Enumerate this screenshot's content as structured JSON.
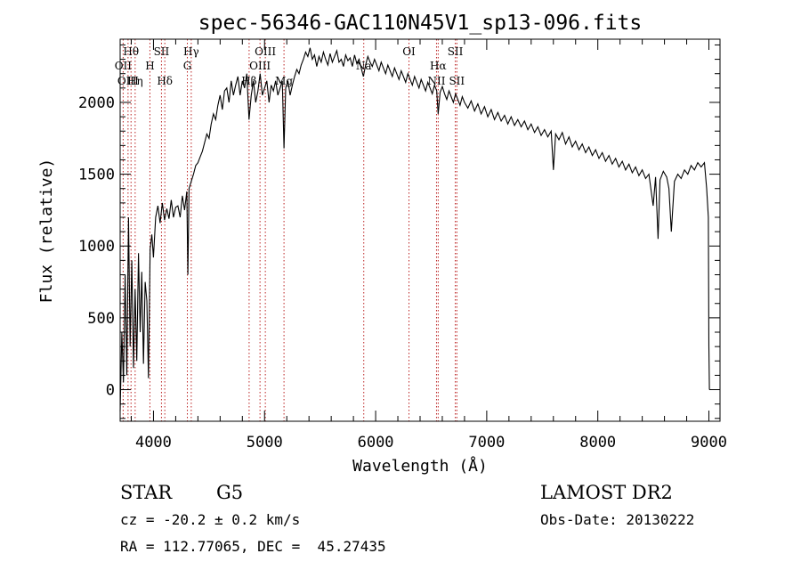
{
  "chart_data": {
    "type": "line",
    "title": "spec-56346-GAC110N45V1_sp13-096.fits",
    "xlabel": "Wavelength (Å)",
    "ylabel": "Flux (relative)",
    "xlim": [
      3700,
      9100
    ],
    "ylim": [
      -220,
      2440
    ],
    "x_ticks": [
      4000,
      5000,
      6000,
      7000,
      8000,
      9000
    ],
    "y_ticks": [
      0,
      500,
      1000,
      1500,
      2000
    ],
    "grid": false,
    "series": [
      {
        "points": [
          [
            3700,
            -150
          ],
          [
            3715,
            400
          ],
          [
            3730,
            50
          ],
          [
            3745,
            800
          ],
          [
            3760,
            100
          ],
          [
            3775,
            1200
          ],
          [
            3790,
            300
          ],
          [
            3805,
            900
          ],
          [
            3820,
            150
          ],
          [
            3835,
            700
          ],
          [
            3850,
            200
          ],
          [
            3865,
            950
          ],
          [
            3880,
            400
          ],
          [
            3895,
            820
          ],
          [
            3910,
            180
          ],
          [
            3925,
            750
          ],
          [
            3940,
            620
          ],
          [
            3955,
            80
          ],
          [
            3970,
            980
          ],
          [
            3985,
            1080
          ],
          [
            4000,
            920
          ],
          [
            4020,
            1200
          ],
          [
            4040,
            1280
          ],
          [
            4060,
            1160
          ],
          [
            4080,
            1300
          ],
          [
            4100,
            1180
          ],
          [
            4120,
            1260
          ],
          [
            4140,
            1190
          ],
          [
            4160,
            1320
          ],
          [
            4180,
            1200
          ],
          [
            4200,
            1270
          ],
          [
            4220,
            1280
          ],
          [
            4240,
            1200
          ],
          [
            4260,
            1350
          ],
          [
            4280,
            1250
          ],
          [
            4300,
            1380
          ],
          [
            4310,
            800
          ],
          [
            4320,
            1400
          ],
          [
            4340,
            1450
          ],
          [
            4360,
            1500
          ],
          [
            4380,
            1560
          ],
          [
            4400,
            1580
          ],
          [
            4420,
            1620
          ],
          [
            4440,
            1660
          ],
          [
            4460,
            1720
          ],
          [
            4480,
            1780
          ],
          [
            4500,
            1750
          ],
          [
            4520,
            1850
          ],
          [
            4540,
            1920
          ],
          [
            4560,
            1880
          ],
          [
            4580,
            1980
          ],
          [
            4600,
            2050
          ],
          [
            4620,
            1950
          ],
          [
            4640,
            2080
          ],
          [
            4660,
            2100
          ],
          [
            4680,
            2000
          ],
          [
            4700,
            2150
          ],
          [
            4720,
            2050
          ],
          [
            4740,
            2120
          ],
          [
            4760,
            2180
          ],
          [
            4780,
            2050
          ],
          [
            4800,
            2150
          ],
          [
            4820,
            2100
          ],
          [
            4840,
            2200
          ],
          [
            4860,
            1880
          ],
          [
            4880,
            2050
          ],
          [
            4900,
            2150
          ],
          [
            4920,
            2000
          ],
          [
            4940,
            2080
          ],
          [
            4960,
            2200
          ],
          [
            4980,
            2050
          ],
          [
            5000,
            2100
          ],
          [
            5020,
            2150
          ],
          [
            5040,
            2000
          ],
          [
            5060,
            2120
          ],
          [
            5080,
            2080
          ],
          [
            5100,
            2150
          ],
          [
            5120,
            2050
          ],
          [
            5140,
            2100
          ],
          [
            5160,
            2150
          ],
          [
            5175,
            1680
          ],
          [
            5190,
            2100
          ],
          [
            5210,
            2150
          ],
          [
            5230,
            2050
          ],
          [
            5250,
            2120
          ],
          [
            5270,
            2180
          ],
          [
            5290,
            2230
          ],
          [
            5310,
            2200
          ],
          [
            5330,
            2260
          ],
          [
            5350,
            2300
          ],
          [
            5370,
            2350
          ],
          [
            5390,
            2320
          ],
          [
            5410,
            2380
          ],
          [
            5430,
            2300
          ],
          [
            5450,
            2330
          ],
          [
            5470,
            2250
          ],
          [
            5490,
            2320
          ],
          [
            5510,
            2280
          ],
          [
            5530,
            2350
          ],
          [
            5550,
            2300
          ],
          [
            5570,
            2260
          ],
          [
            5590,
            2340
          ],
          [
            5610,
            2280
          ],
          [
            5630,
            2320
          ],
          [
            5650,
            2360
          ],
          [
            5670,
            2280
          ],
          [
            5690,
            2300
          ],
          [
            5710,
            2250
          ],
          [
            5730,
            2330
          ],
          [
            5750,
            2290
          ],
          [
            5770,
            2310
          ],
          [
            5790,
            2250
          ],
          [
            5810,
            2330
          ],
          [
            5830,
            2270
          ],
          [
            5850,
            2300
          ],
          [
            5870,
            2240
          ],
          [
            5890,
            2180
          ],
          [
            5910,
            2260
          ],
          [
            5930,
            2320
          ],
          [
            5950,
            2280
          ],
          [
            5970,
            2250
          ],
          [
            5990,
            2300
          ],
          [
            6010,
            2260
          ],
          [
            6030,
            2220
          ],
          [
            6050,
            2280
          ],
          [
            6070,
            2240
          ],
          [
            6090,
            2200
          ],
          [
            6110,
            2260
          ],
          [
            6130,
            2220
          ],
          [
            6150,
            2180
          ],
          [
            6170,
            2240
          ],
          [
            6190,
            2200
          ],
          [
            6210,
            2160
          ],
          [
            6230,
            2220
          ],
          [
            6250,
            2180
          ],
          [
            6270,
            2140
          ],
          [
            6290,
            2200
          ],
          [
            6310,
            2160
          ],
          [
            6330,
            2120
          ],
          [
            6350,
            2180
          ],
          [
            6370,
            2140
          ],
          [
            6390,
            2100
          ],
          [
            6410,
            2160
          ],
          [
            6430,
            2120
          ],
          [
            6450,
            2080
          ],
          [
            6470,
            2140
          ],
          [
            6490,
            2100
          ],
          [
            6510,
            2060
          ],
          [
            6530,
            2120
          ],
          [
            6550,
            2080
          ],
          [
            6563,
            1920
          ],
          [
            6580,
            2070
          ],
          [
            6600,
            2110
          ],
          [
            6620,
            2060
          ],
          [
            6640,
            2020
          ],
          [
            6660,
            2080
          ],
          [
            6680,
            2040
          ],
          [
            6700,
            2000
          ],
          [
            6720,
            2060
          ],
          [
            6740,
            2020
          ],
          [
            6760,
            1980
          ],
          [
            6780,
            2040
          ],
          [
            6800,
            2000
          ],
          [
            6830,
            1960
          ],
          [
            6860,
            2010
          ],
          [
            6890,
            1940
          ],
          [
            6920,
            1990
          ],
          [
            6950,
            1920
          ],
          [
            6980,
            1970
          ],
          [
            7010,
            1900
          ],
          [
            7040,
            1950
          ],
          [
            7070,
            1880
          ],
          [
            7100,
            1930
          ],
          [
            7130,
            1870
          ],
          [
            7160,
            1910
          ],
          [
            7190,
            1850
          ],
          [
            7220,
            1900
          ],
          [
            7250,
            1840
          ],
          [
            7280,
            1880
          ],
          [
            7310,
            1830
          ],
          [
            7340,
            1870
          ],
          [
            7370,
            1810
          ],
          [
            7400,
            1850
          ],
          [
            7430,
            1790
          ],
          [
            7460,
            1830
          ],
          [
            7490,
            1770
          ],
          [
            7520,
            1810
          ],
          [
            7550,
            1760
          ],
          [
            7580,
            1800
          ],
          [
            7600,
            1530
          ],
          [
            7620,
            1780
          ],
          [
            7650,
            1740
          ],
          [
            7680,
            1790
          ],
          [
            7710,
            1710
          ],
          [
            7740,
            1760
          ],
          [
            7770,
            1690
          ],
          [
            7800,
            1730
          ],
          [
            7830,
            1670
          ],
          [
            7860,
            1710
          ],
          [
            7890,
            1650
          ],
          [
            7920,
            1690
          ],
          [
            7950,
            1630
          ],
          [
            7980,
            1670
          ],
          [
            8010,
            1610
          ],
          [
            8040,
            1650
          ],
          [
            8070,
            1590
          ],
          [
            8100,
            1630
          ],
          [
            8130,
            1570
          ],
          [
            8160,
            1610
          ],
          [
            8190,
            1550
          ],
          [
            8220,
            1590
          ],
          [
            8250,
            1530
          ],
          [
            8280,
            1570
          ],
          [
            8310,
            1510
          ],
          [
            8340,
            1550
          ],
          [
            8370,
            1490
          ],
          [
            8400,
            1530
          ],
          [
            8430,
            1470
          ],
          [
            8460,
            1500
          ],
          [
            8498,
            1280
          ],
          [
            8520,
            1480
          ],
          [
            8542,
            1050
          ],
          [
            8560,
            1460
          ],
          [
            8590,
            1520
          ],
          [
            8620,
            1480
          ],
          [
            8640,
            1400
          ],
          [
            8662,
            1100
          ],
          [
            8690,
            1450
          ],
          [
            8720,
            1500
          ],
          [
            8750,
            1470
          ],
          [
            8780,
            1530
          ],
          [
            8810,
            1500
          ],
          [
            8840,
            1560
          ],
          [
            8870,
            1530
          ],
          [
            8900,
            1580
          ],
          [
            8930,
            1550
          ],
          [
            8960,
            1580
          ],
          [
            8980,
            1400
          ],
          [
            8995,
            1200
          ],
          [
            9000,
            300
          ],
          [
            9005,
            0
          ]
        ]
      }
    ],
    "line_labels": [
      {
        "wavelength": 3727,
        "label": "OII",
        "row": 2
      },
      {
        "wavelength": 3771,
        "label": "OIII",
        "row": 3
      },
      {
        "wavelength": 3798,
        "label": "Hθ",
        "row": 1
      },
      {
        "wavelength": 3835,
        "label": "Hη",
        "row": 3
      },
      {
        "wavelength": 3968,
        "label": "H",
        "row": 2
      },
      {
        "wavelength": 4072,
        "label": "SII",
        "row": 1
      },
      {
        "wavelength": 4102,
        "label": "Hδ",
        "row": 3
      },
      {
        "wavelength": 4305,
        "label": "G",
        "row": 2
      },
      {
        "wavelength": 4340,
        "label": "Hγ",
        "row": 1
      },
      {
        "wavelength": 4861,
        "label": "Hβ",
        "row": 3
      },
      {
        "wavelength": 4959,
        "label": "OIII",
        "row": 2
      },
      {
        "wavelength": 5007,
        "label": "OIII",
        "row": 1
      },
      {
        "wavelength": 5175,
        "label": "Mg",
        "row": 3
      },
      {
        "wavelength": 5893,
        "label": "Na",
        "row": 2
      },
      {
        "wavelength": 6300,
        "label": "OI",
        "row": 1
      },
      {
        "wavelength": 6548,
        "label": "NII",
        "row": 3
      },
      {
        "wavelength": 6563,
        "label": "Hα",
        "row": 2
      },
      {
        "wavelength": 6717,
        "label": "SII",
        "row": 1
      },
      {
        "wavelength": 6731,
        "label": "SII",
        "row": 3
      }
    ]
  },
  "info": {
    "object_class": "STAR",
    "subclass": "G5",
    "survey": "LAMOST DR2",
    "redshift_text": "cz = -20.2 ± 0.2 km/s",
    "obs_date_text": "Obs-Date: 20130222",
    "coords_text": "RA = 112.77065, DEC =  45.27435"
  }
}
